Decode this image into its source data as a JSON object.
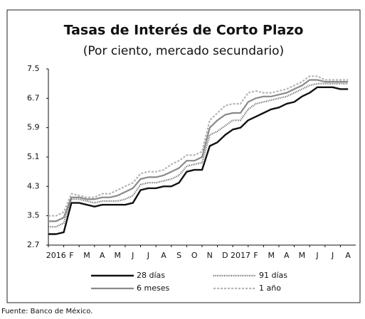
{
  "chart_data": {
    "type": "line",
    "title": "Tasas de Interés de Corto Plazo",
    "subtitle": "(Por ciento, mercado secundario)",
    "source": "Fuente: Banco de México.",
    "x": [
      0,
      0.5,
      1,
      1.5,
      2,
      2.5,
      3,
      3.5,
      4,
      4.5,
      5,
      5.5,
      6,
      6.5,
      7,
      7.5,
      8,
      8.5,
      9,
      9.5,
      10,
      10.5,
      11,
      11.5,
      12,
      12.5,
      13,
      13.5,
      14,
      14.5,
      15,
      15.5,
      16,
      16.5,
      17,
      17.5,
      18,
      18.5,
      19,
      19.5
    ],
    "xlim": [
      0,
      20
    ],
    "xticks": [
      {
        "value": 0,
        "label": "2016"
      },
      {
        "value": 1,
        "label": "F"
      },
      {
        "value": 2,
        "label": "M"
      },
      {
        "value": 3,
        "label": "A"
      },
      {
        "value": 4,
        "label": "M"
      },
      {
        "value": 5,
        "label": "J"
      },
      {
        "value": 6,
        "label": "J"
      },
      {
        "value": 7,
        "label": "A"
      },
      {
        "value": 8,
        "label": "S"
      },
      {
        "value": 9,
        "label": "O"
      },
      {
        "value": 10,
        "label": "N"
      },
      {
        "value": 11,
        "label": "D"
      },
      {
        "value": 12,
        "label": "2017"
      },
      {
        "value": 13,
        "label": "F"
      },
      {
        "value": 14,
        "label": "M"
      },
      {
        "value": 15,
        "label": "A"
      },
      {
        "value": 16,
        "label": "M"
      },
      {
        "value": 17,
        "label": "J"
      },
      {
        "value": 18,
        "label": "J"
      },
      {
        "value": 19,
        "label": "A"
      }
    ],
    "ylim": [
      2.7,
      7.5
    ],
    "yticks": [
      2.7,
      3.5,
      4.3,
      5.1,
      5.9,
      6.7,
      7.5
    ],
    "grid": false,
    "series": [
      {
        "name": "28 días",
        "color": "#111111",
        "dash": "none",
        "width": 2.4,
        "values": [
          3.0,
          3.0,
          3.05,
          3.85,
          3.85,
          3.8,
          3.75,
          3.8,
          3.8,
          3.8,
          3.8,
          3.85,
          4.2,
          4.25,
          4.25,
          4.3,
          4.3,
          4.4,
          4.7,
          4.75,
          4.75,
          5.4,
          5.5,
          5.7,
          5.85,
          5.9,
          6.1,
          6.2,
          6.3,
          6.4,
          6.45,
          6.55,
          6.6,
          6.75,
          6.85,
          7.0,
          7.0,
          7.0,
          6.95,
          6.95
        ]
      },
      {
        "name": "91 días",
        "color": "#555555",
        "dash": "1 1.5",
        "width": 2.2,
        "values": [
          3.2,
          3.2,
          3.3,
          3.95,
          3.95,
          3.9,
          3.85,
          3.9,
          3.9,
          3.9,
          3.95,
          4.05,
          4.35,
          4.4,
          4.4,
          4.45,
          4.5,
          4.6,
          4.85,
          4.9,
          4.95,
          5.7,
          5.8,
          5.95,
          6.1,
          6.1,
          6.4,
          6.55,
          6.6,
          6.65,
          6.7,
          6.75,
          6.85,
          6.95,
          7.05,
          7.1,
          7.1,
          7.1,
          7.1,
          7.1
        ]
      },
      {
        "name": "6 meses",
        "color": "#8a8a8a",
        "dash": "none",
        "width": 2.2,
        "values": [
          3.35,
          3.35,
          3.45,
          4.0,
          4.0,
          3.95,
          3.95,
          4.0,
          4.0,
          4.05,
          4.15,
          4.25,
          4.5,
          4.55,
          4.55,
          4.6,
          4.7,
          4.8,
          5.0,
          5.0,
          5.1,
          5.9,
          6.1,
          6.25,
          6.3,
          6.3,
          6.6,
          6.7,
          6.75,
          6.75,
          6.8,
          6.85,
          6.95,
          7.05,
          7.2,
          7.2,
          7.15,
          7.15,
          7.15,
          7.15
        ]
      },
      {
        "name": "1 año",
        "color": "#b5b5b5",
        "dash": "3 2",
        "width": 2.2,
        "values": [
          3.5,
          3.5,
          3.6,
          4.1,
          4.05,
          4.0,
          4.0,
          4.1,
          4.1,
          4.2,
          4.3,
          4.4,
          4.65,
          4.7,
          4.7,
          4.75,
          4.9,
          5.0,
          5.15,
          5.15,
          5.25,
          6.1,
          6.3,
          6.5,
          6.55,
          6.55,
          6.85,
          6.9,
          6.85,
          6.85,
          6.9,
          6.95,
          7.05,
          7.15,
          7.3,
          7.3,
          7.2,
          7.2,
          7.2,
          7.2
        ]
      }
    ]
  }
}
